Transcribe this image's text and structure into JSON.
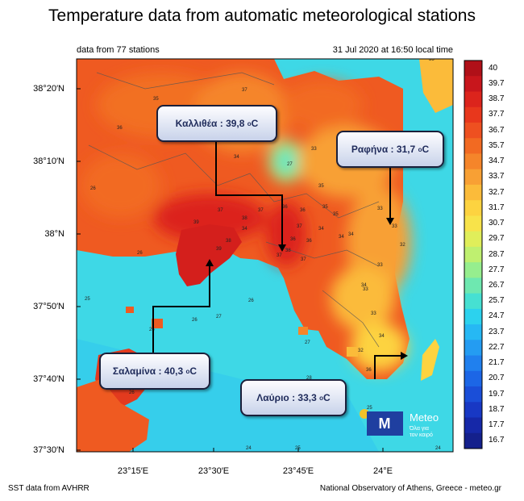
{
  "title": "Temperature data from automatic meteorological stations",
  "subtitle_left": "data from 77 stations",
  "subtitle_right": "31 Jul 2020 at 16:50 local time",
  "lat_ticks": [
    "38°20′N",
    "38°10′N",
    "38°N",
    "37°50′N",
    "37°40′N",
    "37°30′N"
  ],
  "lon_ticks": [
    "23°15′E",
    "23°30′E",
    "23°45′E",
    "24°E"
  ],
  "colorbar": {
    "values": [
      "40",
      "39.7",
      "38.7",
      "37.7",
      "36.7",
      "35.7",
      "34.7",
      "33.7",
      "32.7",
      "31.7",
      "30.7",
      "29.7",
      "28.7",
      "27.7",
      "26.7",
      "25.7",
      "24.7",
      "23.7",
      "22.7",
      "21.7",
      "20.7",
      "19.7",
      "18.7",
      "17.7",
      "16.7"
    ],
    "colors": [
      "#b01018",
      "#c8161c",
      "#dc241c",
      "#e8371c",
      "#ee5020",
      "#f26a22",
      "#f5852a",
      "#f8a034",
      "#fbbb3a",
      "#fdd340",
      "#f8e34a",
      "#e0ee5a",
      "#bff070",
      "#96ee8e",
      "#6ee8b0",
      "#46e0d2",
      "#2cd2ee",
      "#26b8f4",
      "#249cf2",
      "#2080ee",
      "#1c66e6",
      "#1a4ed8",
      "#1838c4",
      "#1628a8",
      "#14208c"
    ]
  },
  "callouts": {
    "kallithea": {
      "name": "Καλλιθέα :  39,8",
      "unit": "C"
    },
    "rafina": {
      "name": "Ραφήνα : 31,7",
      "unit": "C"
    },
    "salamina": {
      "name": "Σαλαμίνα : 40,3",
      "unit": "C"
    },
    "lavrio": {
      "name": "Λαύριο : 33,3",
      "unit": "C"
    },
    "degree": "o"
  },
  "station_values": [
    "37",
    "35",
    "36",
    "36",
    "34",
    "33",
    "27",
    "26",
    "37",
    "38",
    "39",
    "38",
    "37",
    "36",
    "35",
    "36",
    "35",
    "37",
    "36",
    "33",
    "32",
    "34",
    "34",
    "37",
    "38",
    "39",
    "37",
    "36",
    "33",
    "33",
    "34",
    "34",
    "33",
    "32",
    "33",
    "34",
    "26",
    "26",
    "25",
    "26",
    "27",
    "26",
    "27",
    "32",
    "34",
    "36",
    "26",
    "28",
    "25",
    "24",
    "25",
    "24",
    "35",
    "35"
  ],
  "logo": {
    "name": "Meteo",
    "tagline_1": "Όλα για",
    "tagline_2": "τον καιρό",
    "color": "#1f3fa0",
    "dot_color": "#f2c22a"
  },
  "footer_left": "SST data from AVHRR",
  "footer_right": "National Observatory of Athens, Greece - meteo.gr"
}
